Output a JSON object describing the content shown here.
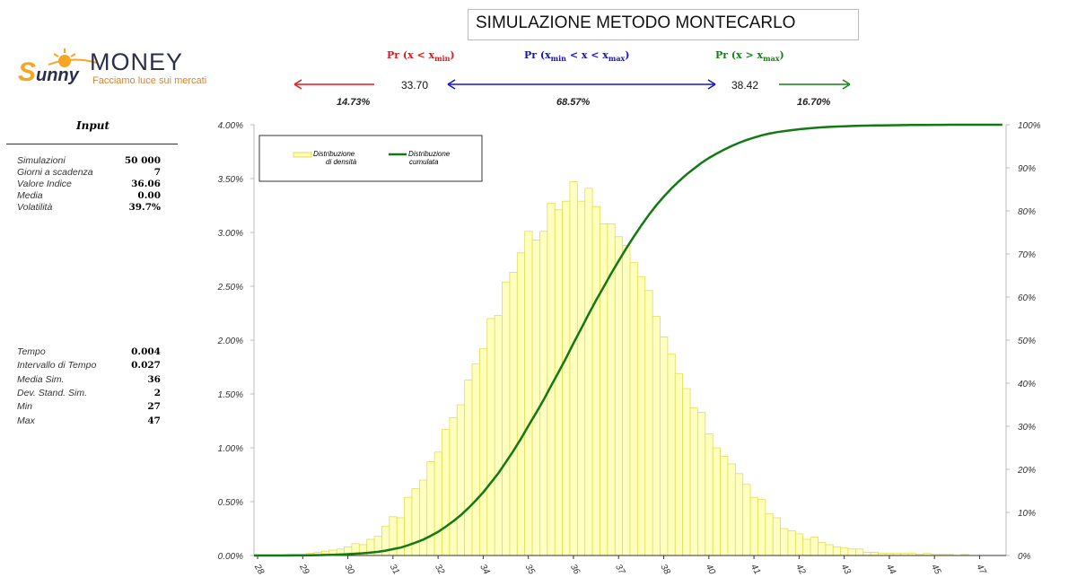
{
  "title": "SIMULAZIONE METODO MONTECARLO",
  "logo": {
    "brand_script": "Sunny",
    "brand": "MONEY",
    "tagline": "Facciamo luce sui mercati",
    "colors": {
      "orange": "#f5a623",
      "text": "#2b2f4a",
      "tagline": "#d9822b"
    }
  },
  "probabilities": {
    "left": {
      "label": "Pr (x < x",
      "sub": "min",
      "tail": ")",
      "value": "14.73%",
      "color": "#e0161b"
    },
    "middle": {
      "label": "Pr (x",
      "sub1": "min",
      "mid": " < x < x",
      "sub2": "max",
      "tail": ")",
      "value": "68.57%",
      "color": "#1515c8"
    },
    "right": {
      "label": "Pr (x > x",
      "sub": "max",
      "tail": ")",
      "value": "16.70%",
      "color": "#128212"
    },
    "x_min": "33.70",
    "x_max": "38.42"
  },
  "input": {
    "heading": "Input",
    "rows": [
      {
        "label": "Simulazioni",
        "value": "50 000"
      },
      {
        "label": "Giorni a scadenza",
        "value": "7"
      },
      {
        "label": "Valore Indice",
        "value": "36.06"
      },
      {
        "label": "Media",
        "value": "0.00"
      },
      {
        "label": "Volatilità",
        "value": "39.7%"
      }
    ],
    "results": [
      {
        "label": "Tempo",
        "value": "0.004"
      },
      {
        "label": "Intervallo di Tempo",
        "value": "0.027"
      },
      {
        "label": "Media Sim.",
        "value": "36"
      },
      {
        "label": "Dev. Stand. Sim.",
        "value": "2"
      },
      {
        "label": "Min",
        "value": "27"
      },
      {
        "label": "Max",
        "value": "47"
      }
    ]
  },
  "chart_data": {
    "type": "bar",
    "legend": {
      "placement": "top-left",
      "entries": [
        {
          "line1": "Distribuzione",
          "line2": "di densità"
        },
        {
          "line1": "Distribuzione",
          "line2": "cumulata"
        }
      ]
    },
    "x_tick_labels": [
      "28",
      "29",
      "30",
      "31",
      "32",
      "34",
      "35",
      "36",
      "37",
      "38",
      "40",
      "41",
      "42",
      "43",
      "44",
      "45",
      "47"
    ],
    "y_left": {
      "ylim": [
        0,
        4
      ],
      "ticks": [
        "0.00%",
        "0.50%",
        "1.00%",
        "1.50%",
        "2.00%",
        "2.50%",
        "3.00%",
        "3.50%",
        "4.00%"
      ]
    },
    "y_right": {
      "ylim": [
        0,
        100
      ],
      "ticks": [
        "0%",
        "10%",
        "20%",
        "30%",
        "40%",
        "50%",
        "60%",
        "70%",
        "80%",
        "90%",
        "100%"
      ]
    },
    "grid": false,
    "series": [
      {
        "name": "Distribuzione di densità",
        "type": "bar",
        "unit": "%",
        "color": "#ffffc0",
        "edge": "#e6dc50",
        "values": [
          0.0,
          0.0,
          0.0,
          0.0,
          0.01,
          0.01,
          0.01,
          0.02,
          0.03,
          0.04,
          0.05,
          0.06,
          0.08,
          0.11,
          0.1,
          0.15,
          0.18,
          0.27,
          0.36,
          0.35,
          0.54,
          0.62,
          0.7,
          0.87,
          0.96,
          1.17,
          1.28,
          1.4,
          1.63,
          1.78,
          1.92,
          2.2,
          2.23,
          2.54,
          2.63,
          2.81,
          3.01,
          2.93,
          3.01,
          3.27,
          3.21,
          3.29,
          3.47,
          3.29,
          3.41,
          3.24,
          3.08,
          3.08,
          2.96,
          2.88,
          2.72,
          2.59,
          2.46,
          2.22,
          2.03,
          1.87,
          1.69,
          1.55,
          1.37,
          1.33,
          1.13,
          1.0,
          0.92,
          0.85,
          0.76,
          0.66,
          0.54,
          0.52,
          0.39,
          0.35,
          0.25,
          0.23,
          0.2,
          0.15,
          0.17,
          0.12,
          0.1,
          0.08,
          0.07,
          0.06,
          0.06,
          0.03,
          0.03,
          0.02,
          0.02,
          0.02,
          0.02,
          0.02,
          0.01,
          0.02,
          0.01,
          0.01,
          0.01,
          0.0,
          0.01,
          0.0,
          0.0,
          0.0,
          0.0,
          0.0
        ]
      },
      {
        "name": "Distribuzione cumulata",
        "type": "line",
        "axis": "right",
        "color": "#127a12",
        "derived_from": "running sum of density"
      }
    ]
  }
}
